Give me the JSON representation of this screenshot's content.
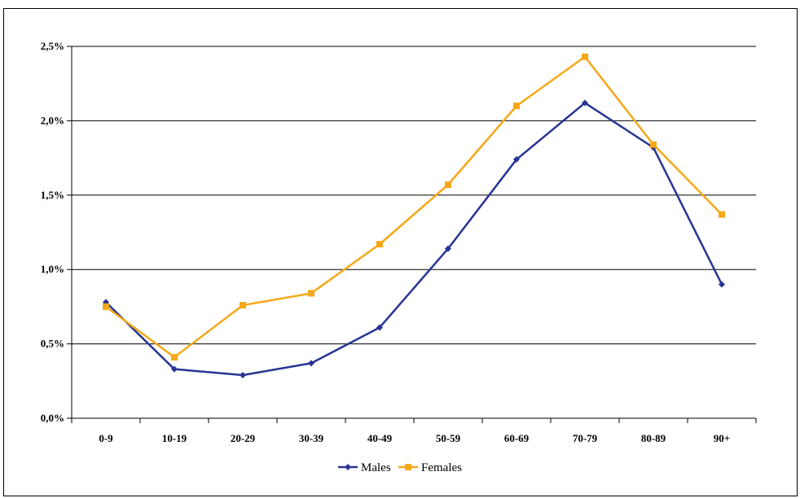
{
  "chart_data": {
    "type": "line",
    "title": "",
    "xlabel": "",
    "ylabel": "",
    "categories": [
      "0-9",
      "10-19",
      "20-29",
      "30-39",
      "40-49",
      "50-59",
      "60-69",
      "70-79",
      "80-89",
      "90+"
    ],
    "ylim": [
      0,
      2.5
    ],
    "yticks": [
      0,
      0.5,
      1.0,
      1.5,
      2.0,
      2.5
    ],
    "ytick_labels": [
      "0,0%",
      "0,5%",
      "1,0%",
      "1,5%",
      "2,0%",
      "2,5%"
    ],
    "grid": true,
    "legend_position": "bottom",
    "series": [
      {
        "name": "Males",
        "color": "#283593",
        "marker": "diamond",
        "values": [
          0.78,
          0.33,
          0.29,
          0.37,
          0.61,
          1.14,
          1.74,
          2.12,
          1.82,
          0.9
        ]
      },
      {
        "name": "Females",
        "color": "#F5A818",
        "marker": "square",
        "values": [
          0.75,
          0.41,
          0.76,
          0.84,
          1.17,
          1.57,
          2.1,
          2.43,
          1.84,
          1.37
        ]
      }
    ]
  }
}
